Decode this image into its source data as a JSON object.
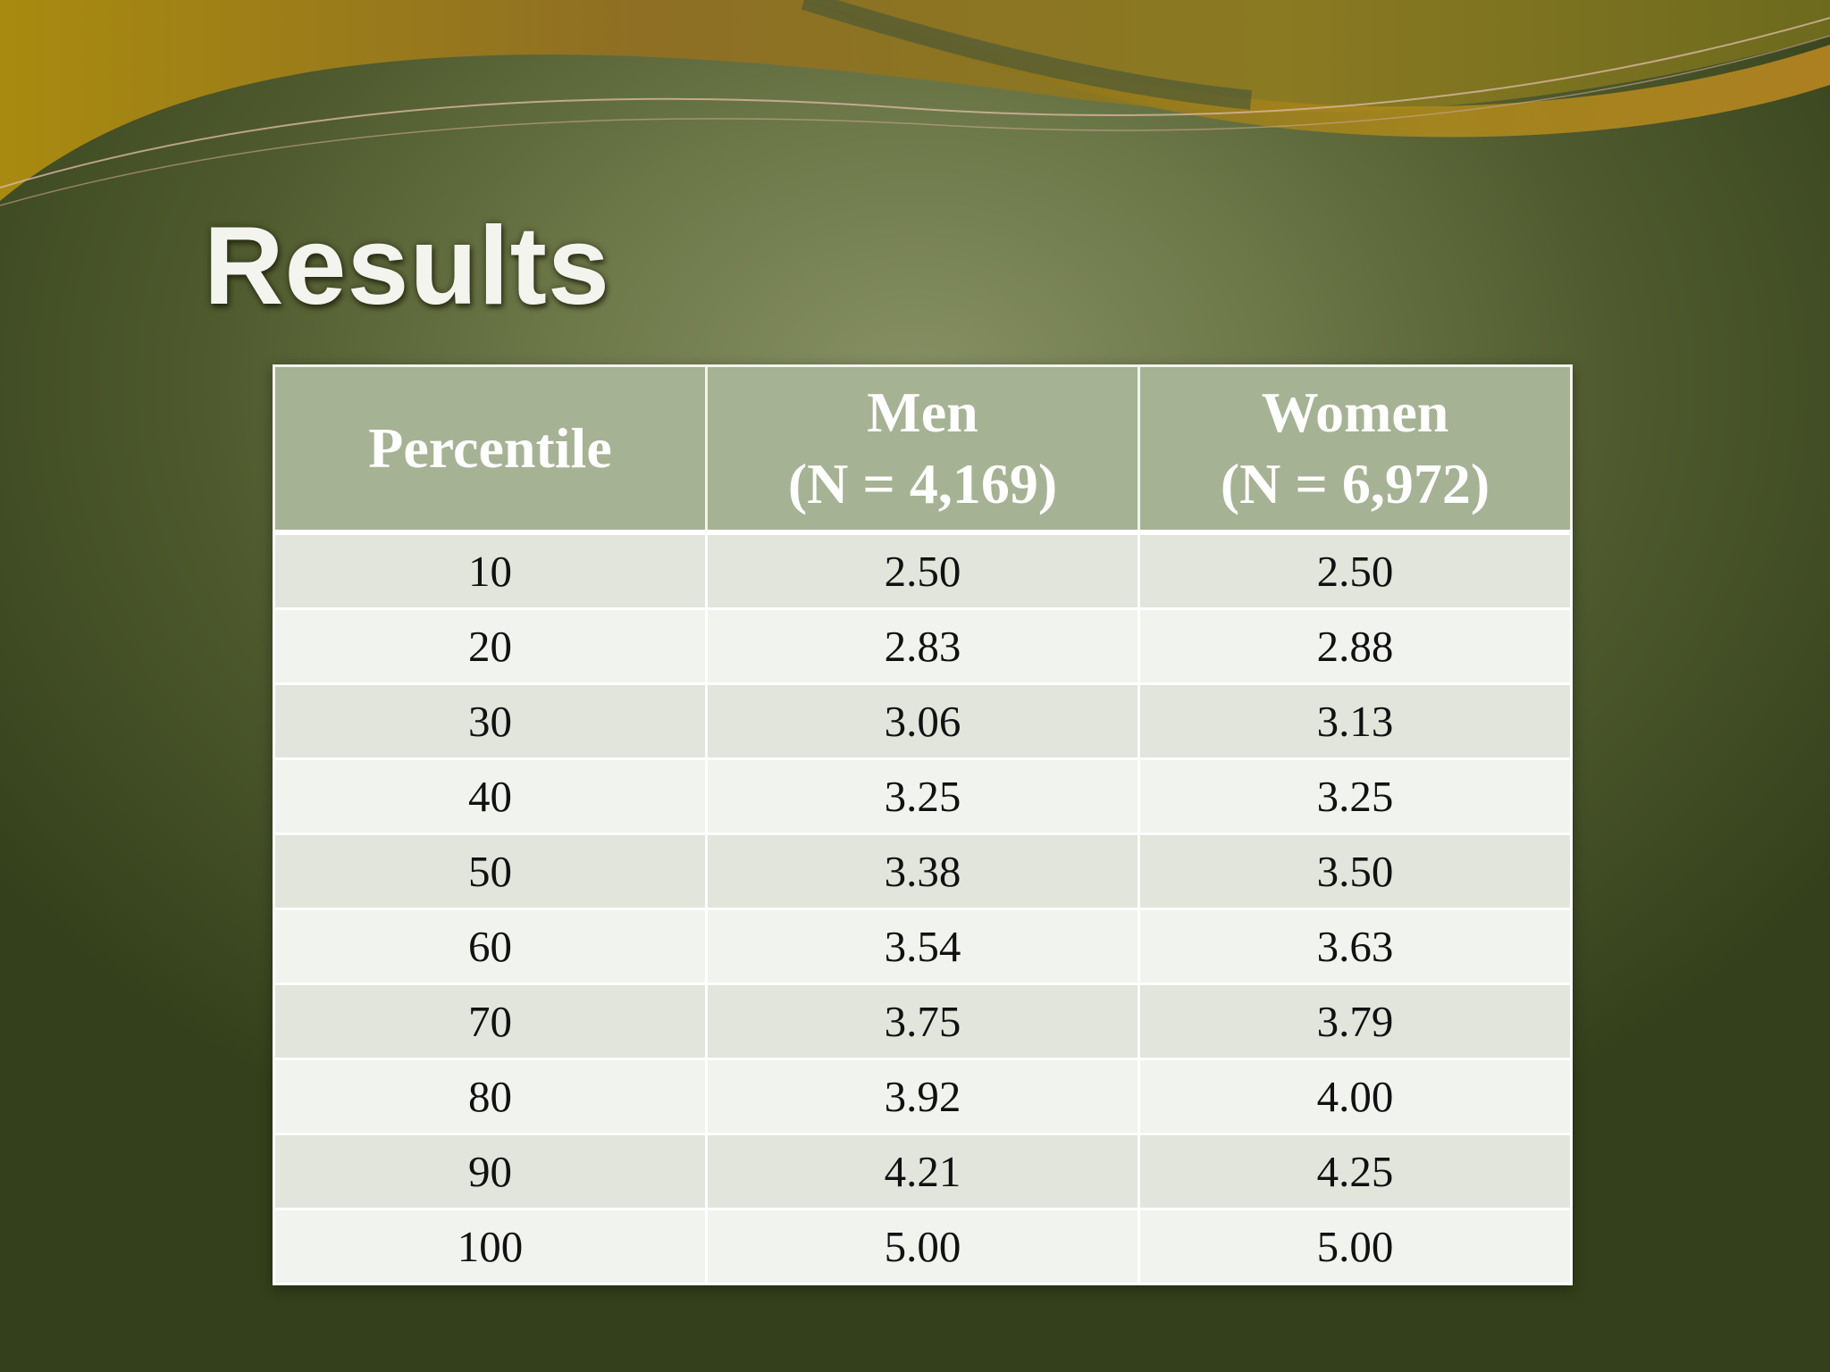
{
  "slide": {
    "title": "Results"
  },
  "table": {
    "headers": [
      {
        "line1": "Percentile",
        "line2": ""
      },
      {
        "line1": "Men",
        "line2": "(N = 4,169)"
      },
      {
        "line1": "Women",
        "line2": "(N = 6,972)"
      }
    ],
    "rows": [
      [
        "10",
        "2.50",
        "2.50"
      ],
      [
        "20",
        "2.83",
        "2.88"
      ],
      [
        "30",
        "3.06",
        "3.13"
      ],
      [
        "40",
        "3.25",
        "3.25"
      ],
      [
        "50",
        "3.38",
        "3.50"
      ],
      [
        "60",
        "3.54",
        "3.63"
      ],
      [
        "70",
        "3.75",
        "3.79"
      ],
      [
        "80",
        "3.92",
        "4.00"
      ],
      [
        "90",
        "4.21",
        "4.25"
      ],
      [
        "100",
        "5.00",
        "5.00"
      ]
    ]
  },
  "colors": {
    "header_bg": "#a6b294",
    "row_odd": "#e1e5dc",
    "row_even": "#f1f3ee",
    "background": "#4f5a2e"
  }
}
